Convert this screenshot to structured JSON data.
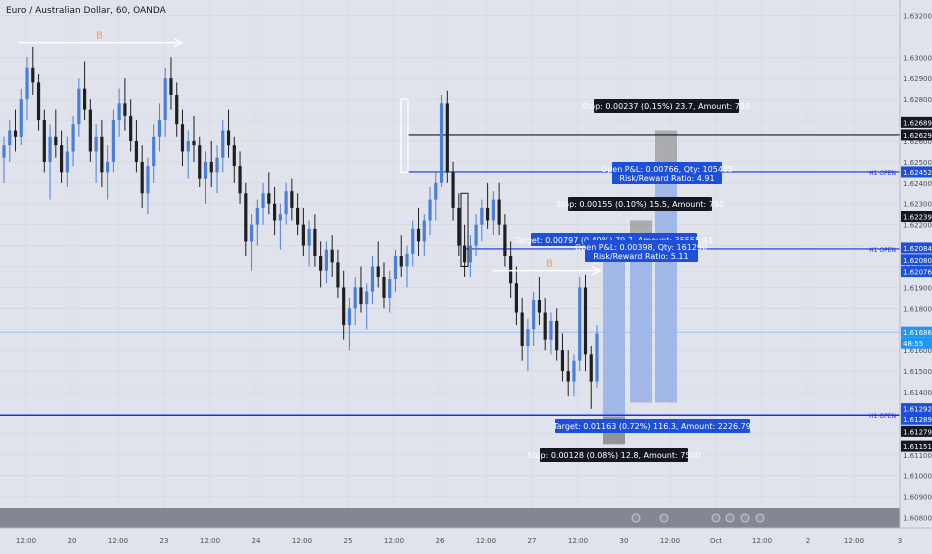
{
  "header": {
    "symbol_title": "Euro / Australian Dollar, 60, OANDA"
  },
  "colors": {
    "background": "#e0e3eb",
    "up": "#4a7fd9",
    "down": "#1f1f1f",
    "hline": "#1932e0",
    "price_badge": "#2196f3",
    "label_bg": "#131722",
    "label_blue": "#1e4fd8",
    "stop_zone": "#808080",
    "target_zone": "#8ea9e8"
  },
  "x_axis_labels": [
    "12:00",
    "20",
    "12:00",
    "23",
    "12:00",
    "24",
    "12:00",
    "25",
    "12:00",
    "26",
    "12:00",
    "27",
    "12:00",
    "30",
    "12:00",
    "Oct",
    "12:00",
    "2",
    "12:00",
    "3"
  ],
  "y_axis_ticks": [
    "1.63200",
    "1.63000",
    "1.62900",
    "1.62800",
    "1.62700",
    "1.62600",
    "1.62500",
    "1.62400",
    "1.62300",
    "1.62200",
    "1.62100",
    "1.62000",
    "1.61900",
    "1.61800",
    "1.61700",
    "1.61600",
    "1.61500",
    "1.61400",
    "1.61300",
    "1.61200",
    "1.61100",
    "1.61000",
    "1.60900",
    "1.60800"
  ],
  "price_badges": [
    {
      "label": "1.62689",
      "kind": "dark"
    },
    {
      "label": "1.62629",
      "kind": "dark"
    },
    {
      "label": "1.62452",
      "kind": "blue"
    },
    {
      "label": "1.62239",
      "kind": "dark"
    },
    {
      "label": "1.62084",
      "kind": "blue"
    },
    {
      "label": "1.62080",
      "kind": "blue"
    },
    {
      "label": "1.62076",
      "kind": "blue"
    },
    {
      "label": "1.61686",
      "kind": "price"
    },
    {
      "label": "48:55",
      "kind": "price"
    },
    {
      "label": "1.61292",
      "kind": "blue"
    },
    {
      "label": "1.61289",
      "kind": "blue"
    },
    {
      "label": "1.61279",
      "kind": "dark"
    },
    {
      "label": "1.61151",
      "kind": "dark"
    }
  ],
  "h1_open_label": "H1 OPEN",
  "annotations": {
    "stop_top": "Stop: 0.00237 (0.15%) 23.7, Amount: 750",
    "openpl_1": "Open P&L: 0.00766, Qty: 105485",
    "rr_1": "Risk/Reward Ratio: 4.91",
    "stop_mid": "Stop: 0.00155 (0.10%) 15.5, Amount: 750",
    "target_mid": "Target: 0.00797 (0.49%) 79.7, Amount: 35555.41",
    "openpl_2": "Open P&L: 0.00398, Qty: 161290",
    "rr_2": "Risk/Reward Ratio: 5.11",
    "target_bottom": "Target: 0.01163 (0.72%) 116.3, Amount: 2226.79",
    "target_bottom_prefix": "Target:",
    "stop_bottom": "Stop: 0.00128 (0.08%) 12.8, Amount: 7500"
  },
  "chart_data": {
    "type": "candlestick",
    "title": "Euro / Australian Dollar, 60, OANDA",
    "ylim": [
      1.6075,
      1.6325
    ],
    "series": [
      {
        "ohlc": [
          [
            1.6252,
            1.6262,
            1.624,
            1.6258
          ],
          [
            1.6258,
            1.627,
            1.625,
            1.6265
          ],
          [
            1.6265,
            1.6275,
            1.6255,
            1.6262
          ],
          [
            1.6262,
            1.6285,
            1.6258,
            1.628
          ],
          [
            1.628,
            1.63,
            1.627,
            1.6295
          ],
          [
            1.6295,
            1.6305,
            1.6282,
            1.6288
          ],
          [
            1.6288,
            1.6292,
            1.6265,
            1.627
          ],
          [
            1.627,
            1.6275,
            1.6245,
            1.625
          ],
          [
            1.625,
            1.6268,
            1.6232,
            1.6262
          ],
          [
            1.6262,
            1.6275,
            1.6252,
            1.6258
          ],
          [
            1.6258,
            1.6265,
            1.624,
            1.6245
          ],
          [
            1.6245,
            1.6262,
            1.6238,
            1.6255
          ],
          [
            1.6255,
            1.6272,
            1.6248,
            1.6268
          ],
          [
            1.6268,
            1.629,
            1.6262,
            1.6285
          ],
          [
            1.6285,
            1.6298,
            1.627,
            1.6275
          ],
          [
            1.6275,
            1.628,
            1.625,
            1.6255
          ],
          [
            1.6255,
            1.6268,
            1.624,
            1.6262
          ],
          [
            1.6262,
            1.627,
            1.6238,
            1.6245
          ],
          [
            1.6245,
            1.6258,
            1.6232,
            1.625
          ],
          [
            1.625,
            1.6275,
            1.6245,
            1.627
          ],
          [
            1.627,
            1.6285,
            1.6262,
            1.6278
          ],
          [
            1.6278,
            1.629,
            1.6265,
            1.6272
          ],
          [
            1.6272,
            1.628,
            1.6255,
            1.626
          ],
          [
            1.626,
            1.627,
            1.6245,
            1.625
          ],
          [
            1.625,
            1.6258,
            1.6228,
            1.6235
          ],
          [
            1.6235,
            1.6252,
            1.6225,
            1.6248
          ],
          [
            1.6248,
            1.6268,
            1.624,
            1.6262
          ],
          [
            1.6262,
            1.6278,
            1.6255,
            1.627
          ],
          [
            1.627,
            1.6295,
            1.6262,
            1.629
          ],
          [
            1.629,
            1.63,
            1.6275,
            1.6282
          ],
          [
            1.6282,
            1.6288,
            1.6262,
            1.6268
          ],
          [
            1.6268,
            1.6275,
            1.6248,
            1.6255
          ],
          [
            1.6255,
            1.6265,
            1.6242,
            1.626
          ],
          [
            1.626,
            1.6272,
            1.625,
            1.6258
          ],
          [
            1.6258,
            1.6262,
            1.6238,
            1.6242
          ],
          [
            1.6242,
            1.6255,
            1.623,
            1.625
          ],
          [
            1.625,
            1.626,
            1.6238,
            1.6245
          ],
          [
            1.6245,
            1.6258,
            1.6235,
            1.6252
          ],
          [
            1.6252,
            1.627,
            1.6245,
            1.6265
          ],
          [
            1.6265,
            1.6275,
            1.6252,
            1.6258
          ],
          [
            1.6258,
            1.6262,
            1.624,
            1.6248
          ],
          [
            1.6248,
            1.6255,
            1.623,
            1.6235
          ],
          [
            1.6235,
            1.624,
            1.6205,
            1.6212
          ],
          [
            1.6212,
            1.6225,
            1.6198,
            1.622
          ],
          [
            1.622,
            1.6232,
            1.621,
            1.6228
          ],
          [
            1.6228,
            1.624,
            1.622,
            1.6235
          ],
          [
            1.6235,
            1.6245,
            1.6225,
            1.623
          ],
          [
            1.623,
            1.6238,
            1.6215,
            1.6222
          ],
          [
            1.6222,
            1.623,
            1.6208,
            1.6225
          ],
          [
            1.6225,
            1.624,
            1.622,
            1.6236
          ],
          [
            1.6236,
            1.6242,
            1.6222,
            1.6228
          ],
          [
            1.6228,
            1.6235,
            1.6215,
            1.622
          ],
          [
            1.622,
            1.6228,
            1.6205,
            1.621
          ],
          [
            1.621,
            1.6222,
            1.62,
            1.6218
          ],
          [
            1.6218,
            1.6225,
            1.62,
            1.6205
          ],
          [
            1.6205,
            1.6212,
            1.619,
            1.6198
          ],
          [
            1.6198,
            1.6212,
            1.6192,
            1.6208
          ],
          [
            1.6208,
            1.6215,
            1.6195,
            1.6202
          ],
          [
            1.6202,
            1.6208,
            1.6185,
            1.619
          ],
          [
            1.619,
            1.6198,
            1.6165,
            1.6172
          ],
          [
            1.6172,
            1.6185,
            1.616,
            1.618
          ],
          [
            1.618,
            1.6195,
            1.6172,
            1.619
          ],
          [
            1.619,
            1.62,
            1.6178,
            1.6182
          ],
          [
            1.6182,
            1.6192,
            1.617,
            1.6188
          ],
          [
            1.6188,
            1.6205,
            1.6182,
            1.62
          ],
          [
            1.62,
            1.6212,
            1.619,
            1.6195
          ],
          [
            1.6195,
            1.6202,
            1.618,
            1.6185
          ],
          [
            1.6185,
            1.6198,
            1.6178,
            1.6194
          ],
          [
            1.6194,
            1.6208,
            1.6188,
            1.6205
          ],
          [
            1.6205,
            1.6215,
            1.6195,
            1.62
          ],
          [
            1.62,
            1.621,
            1.619,
            1.6206
          ],
          [
            1.6206,
            1.6222,
            1.62,
            1.6218
          ],
          [
            1.6218,
            1.6228,
            1.6205,
            1.6212
          ],
          [
            1.6212,
            1.6225,
            1.6205,
            1.6222
          ],
          [
            1.6222,
            1.6238,
            1.6215,
            1.6232
          ],
          [
            1.6232,
            1.6245,
            1.6222,
            1.624
          ],
          [
            1.624,
            1.6282,
            1.6238,
            1.6278
          ],
          [
            1.6278,
            1.6284,
            1.624,
            1.6245
          ],
          [
            1.6245,
            1.625,
            1.6222,
            1.6228
          ],
          [
            1.6228,
            1.6235,
            1.6205,
            1.621
          ],
          [
            1.621,
            1.622,
            1.6195,
            1.6202
          ],
          [
            1.6202,
            1.6215,
            1.6195,
            1.621
          ],
          [
            1.621,
            1.6225,
            1.6205,
            1.622
          ],
          [
            1.622,
            1.6232,
            1.6212,
            1.6228
          ],
          [
            1.6228,
            1.624,
            1.6218,
            1.6222
          ],
          [
            1.6222,
            1.6236,
            1.6215,
            1.6232
          ],
          [
            1.6232,
            1.624,
            1.6215,
            1.622
          ],
          [
            1.622,
            1.6225,
            1.62,
            1.6205
          ],
          [
            1.6205,
            1.6212,
            1.6185,
            1.6192
          ],
          [
            1.6192,
            1.62,
            1.6172,
            1.6178
          ],
          [
            1.6178,
            1.6185,
            1.6155,
            1.6162
          ],
          [
            1.6162,
            1.6175,
            1.615,
            1.617
          ],
          [
            1.617,
            1.6188,
            1.6162,
            1.6184
          ],
          [
            1.6184,
            1.6195,
            1.6172,
            1.6178
          ],
          [
            1.6178,
            1.6185,
            1.616,
            1.6165
          ],
          [
            1.6165,
            1.6178,
            1.6158,
            1.6174
          ],
          [
            1.6174,
            1.618,
            1.6155,
            1.616
          ],
          [
            1.616,
            1.6168,
            1.6145,
            1.615
          ],
          [
            1.615,
            1.616,
            1.6138,
            1.6145
          ],
          [
            1.6145,
            1.6158,
            1.6138,
            1.6155
          ],
          [
            1.6155,
            1.6195,
            1.615,
            1.619
          ],
          [
            1.619,
            1.6196,
            1.615,
            1.6158
          ],
          [
            1.6158,
            1.6162,
            1.6132,
            1.6145
          ],
          [
            1.6145,
            1.6172,
            1.6142,
            1.6168
          ]
        ]
      }
    ]
  }
}
